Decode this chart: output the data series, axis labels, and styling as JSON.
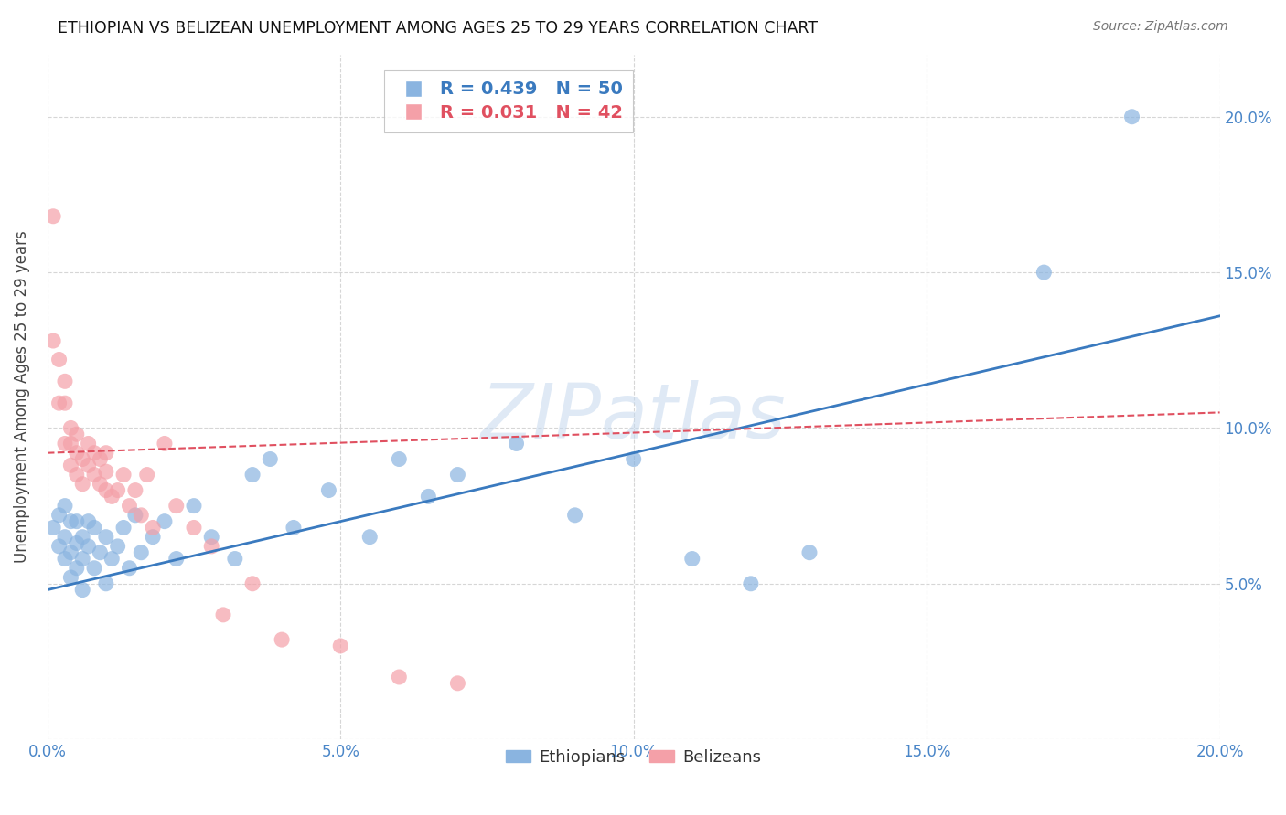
{
  "title": "ETHIOPIAN VS BELIZEAN UNEMPLOYMENT AMONG AGES 25 TO 29 YEARS CORRELATION CHART",
  "source": "Source: ZipAtlas.com",
  "ylabel": "Unemployment Among Ages 25 to 29 years",
  "xlim": [
    0,
    0.2
  ],
  "ylim": [
    0,
    0.22
  ],
  "grid_color": "#cccccc",
  "background_color": "#ffffff",
  "watermark": "ZIPatlas",
  "blue_color": "#8ab4e0",
  "pink_color": "#f4a0a8",
  "blue_line_color": "#3a7abf",
  "pink_line_color": "#e05060",
  "axis_label_color": "#4a86c8",
  "title_color": "#111111",
  "ethiopians_x": [
    0.001,
    0.002,
    0.002,
    0.003,
    0.003,
    0.003,
    0.004,
    0.004,
    0.004,
    0.005,
    0.005,
    0.005,
    0.006,
    0.006,
    0.006,
    0.007,
    0.007,
    0.008,
    0.008,
    0.009,
    0.01,
    0.01,
    0.011,
    0.012,
    0.013,
    0.014,
    0.015,
    0.016,
    0.018,
    0.02,
    0.022,
    0.025,
    0.028,
    0.032,
    0.035,
    0.038,
    0.042,
    0.048,
    0.055,
    0.06,
    0.065,
    0.07,
    0.08,
    0.09,
    0.1,
    0.11,
    0.12,
    0.13,
    0.17,
    0.185
  ],
  "ethiopians_y": [
    0.068,
    0.062,
    0.072,
    0.058,
    0.065,
    0.075,
    0.052,
    0.06,
    0.07,
    0.055,
    0.063,
    0.07,
    0.048,
    0.058,
    0.065,
    0.062,
    0.07,
    0.055,
    0.068,
    0.06,
    0.05,
    0.065,
    0.058,
    0.062,
    0.068,
    0.055,
    0.072,
    0.06,
    0.065,
    0.07,
    0.058,
    0.075,
    0.065,
    0.058,
    0.085,
    0.09,
    0.068,
    0.08,
    0.065,
    0.09,
    0.078,
    0.085,
    0.095,
    0.072,
    0.09,
    0.058,
    0.05,
    0.06,
    0.15,
    0.2
  ],
  "belizeans_x": [
    0.001,
    0.001,
    0.002,
    0.002,
    0.003,
    0.003,
    0.003,
    0.004,
    0.004,
    0.004,
    0.005,
    0.005,
    0.005,
    0.006,
    0.006,
    0.007,
    0.007,
    0.008,
    0.008,
    0.009,
    0.009,
    0.01,
    0.01,
    0.01,
    0.011,
    0.012,
    0.013,
    0.014,
    0.015,
    0.016,
    0.017,
    0.018,
    0.02,
    0.022,
    0.025,
    0.028,
    0.03,
    0.035,
    0.04,
    0.05,
    0.06,
    0.07
  ],
  "belizeans_y": [
    0.168,
    0.128,
    0.122,
    0.108,
    0.115,
    0.108,
    0.095,
    0.1,
    0.095,
    0.088,
    0.098,
    0.092,
    0.085,
    0.09,
    0.082,
    0.095,
    0.088,
    0.085,
    0.092,
    0.082,
    0.09,
    0.08,
    0.086,
    0.092,
    0.078,
    0.08,
    0.085,
    0.075,
    0.08,
    0.072,
    0.085,
    0.068,
    0.095,
    0.075,
    0.068,
    0.062,
    0.04,
    0.05,
    0.032,
    0.03,
    0.02,
    0.018
  ]
}
